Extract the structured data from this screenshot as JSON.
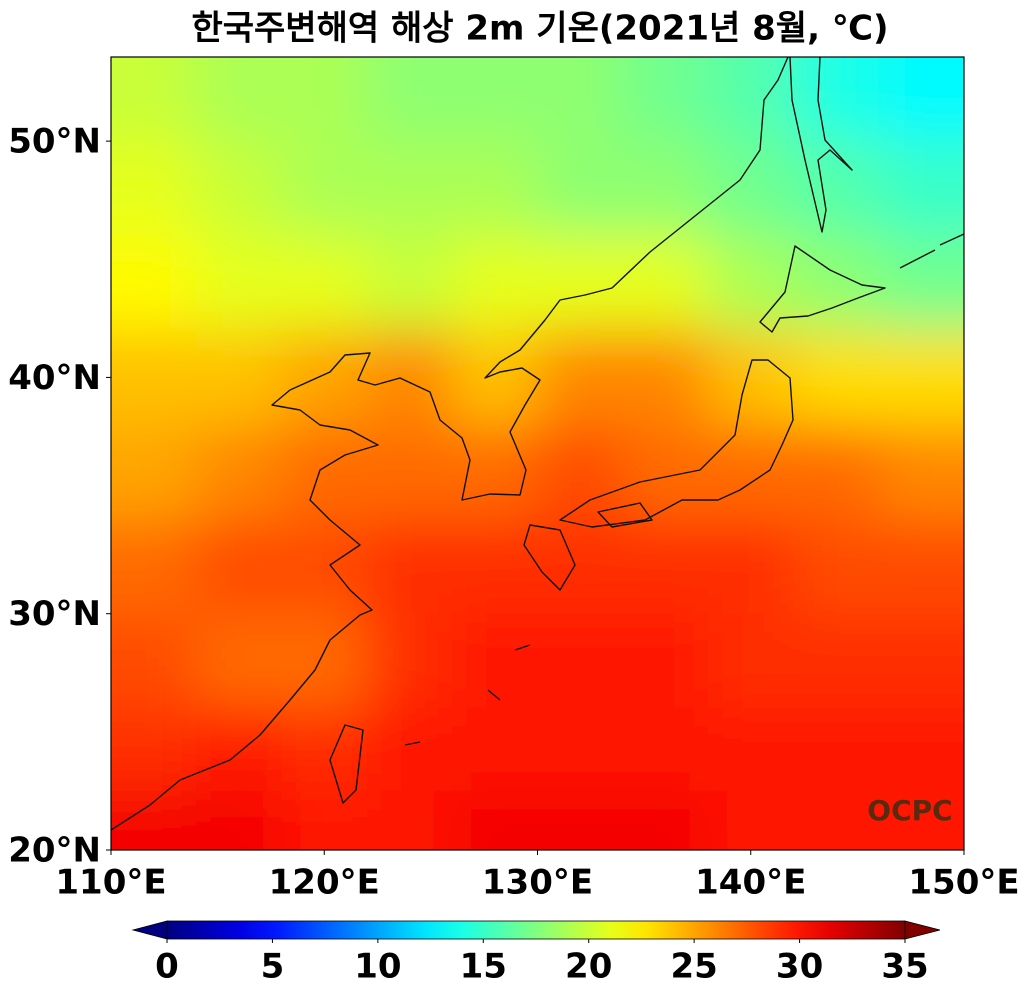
{
  "map_data": {
    "title": "한국주변해역 해상 2m 기온(2021년 8월, ℃)",
    "logo": "OCPC",
    "lonlim": [
      110,
      150
    ],
    "latlim": [
      20,
      53.56
    ],
    "xticks": [
      {
        "value": 110,
        "label": "110°E"
      },
      {
        "value": 120,
        "label": "120°E"
      },
      {
        "value": 130,
        "label": "130°E"
      },
      {
        "value": 140,
        "label": "140°E"
      },
      {
        "value": 150,
        "label": "150°E"
      }
    ],
    "yticks": [
      {
        "value": 20,
        "label": "20°N"
      },
      {
        "value": 30,
        "label": "30°N"
      },
      {
        "value": 40,
        "label": "40°N"
      },
      {
        "value": 50,
        "label": "50°N"
      }
    ],
    "colormap": "jet",
    "clim": [
      0,
      35
    ],
    "cticks": [
      0,
      5,
      10,
      15,
      20,
      25,
      30,
      35
    ],
    "lons": [
      112,
      116,
      120,
      124,
      128,
      132,
      136,
      140,
      144,
      148
    ],
    "lats": [
      52,
      48,
      44,
      40,
      36,
      32,
      28,
      24,
      21
    ],
    "values": [
      [
        20,
        19,
        19,
        18,
        18,
        18,
        17,
        16,
        14,
        13
      ],
      [
        21,
        20,
        19,
        19,
        19,
        18,
        18,
        17,
        16,
        15
      ],
      [
        22,
        21,
        21,
        20,
        21,
        21,
        21,
        19,
        18,
        17
      ],
      [
        24,
        24,
        25,
        26,
        24,
        26,
        26,
        24,
        23,
        23
      ],
      [
        25,
        26,
        27,
        27,
        27,
        28,
        27,
        27,
        27,
        26
      ],
      [
        27,
        28,
        28,
        29,
        29,
        29,
        29,
        29,
        28,
        28
      ],
      [
        28,
        27,
        27,
        29,
        30,
        30,
        30,
        29,
        29,
        29
      ],
      [
        29,
        30,
        29,
        30,
        30,
        30,
        30,
        30,
        30,
        30
      ],
      [
        31,
        31,
        30,
        30,
        31,
        31,
        31,
        30,
        30,
        30
      ]
    ]
  }
}
